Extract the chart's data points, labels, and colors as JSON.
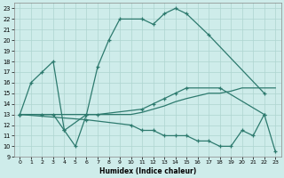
{
  "xlabel": "Humidex (Indice chaleur)",
  "background_color": "#ceecea",
  "line_color": "#2d7a6e",
  "grid_color": "#aed4d0",
  "xlim": [
    -0.5,
    23.5
  ],
  "ylim": [
    9,
    23.5
  ],
  "yticks": [
    9,
    10,
    11,
    12,
    13,
    14,
    15,
    16,
    17,
    18,
    19,
    20,
    21,
    22,
    23
  ],
  "xticks": [
    0,
    1,
    2,
    3,
    4,
    5,
    6,
    7,
    8,
    9,
    10,
    11,
    12,
    13,
    14,
    15,
    16,
    17,
    18,
    19,
    20,
    21,
    22,
    23
  ],
  "line1_x": [
    0,
    1,
    2,
    3,
    4,
    5,
    6,
    7,
    8,
    9,
    11,
    12,
    13,
    14,
    15,
    17,
    22
  ],
  "line1_y": [
    13,
    16,
    17,
    18,
    11.5,
    10,
    13,
    17.5,
    20,
    22,
    22,
    21.5,
    22.5,
    23,
    22.5,
    20.5,
    15
  ],
  "line2_x": [
    0,
    2,
    3,
    4,
    6,
    7,
    11,
    12,
    13,
    14,
    15,
    18,
    22
  ],
  "line2_y": [
    13,
    13,
    13,
    11.5,
    13,
    13,
    13.5,
    14,
    14.5,
    15,
    15.5,
    15.5,
    13
  ],
  "line3_x": [
    0,
    6,
    10,
    11,
    12,
    13,
    14,
    15,
    17,
    18,
    19,
    20,
    21,
    22,
    23
  ],
  "line3_y": [
    13,
    13,
    13,
    13.2,
    13.5,
    13.8,
    14.2,
    14.5,
    15,
    15,
    15.2,
    15.5,
    15.5,
    15.5,
    15.5
  ],
  "line4_x": [
    0,
    6,
    10,
    11,
    12,
    13,
    14,
    15,
    16,
    17,
    18,
    19,
    20,
    21,
    22,
    23
  ],
  "line4_y": [
    13,
    12.5,
    12,
    11.5,
    11.5,
    11,
    11,
    11,
    10.5,
    10.5,
    10,
    10,
    11.5,
    11,
    13,
    9.5
  ]
}
